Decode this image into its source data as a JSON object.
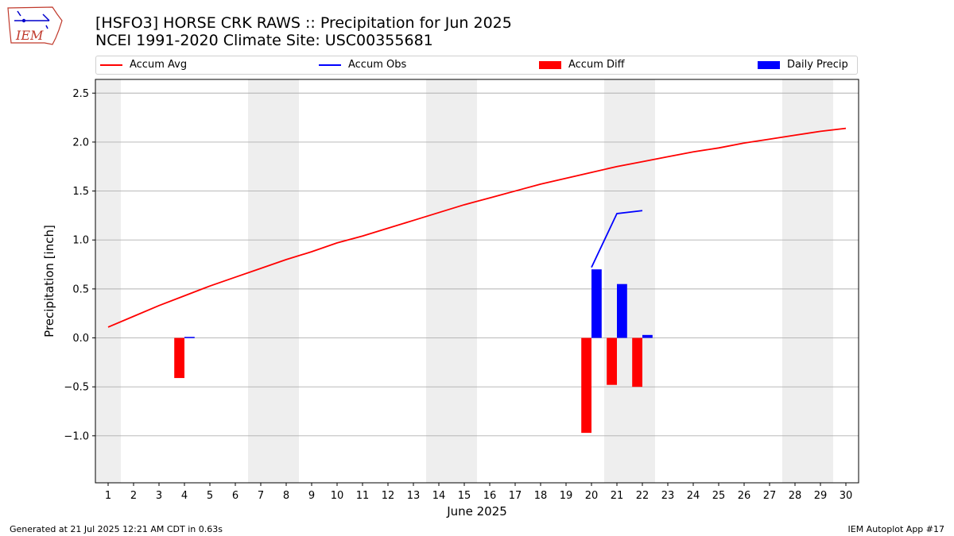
{
  "header": {
    "title_line1": "[HSFO3] HORSE CRK RAWS :: Precipitation for Jun 2025",
    "title_line2": "NCEI 1991-2020 Climate Site: USC00355681",
    "logo_text": "IEM"
  },
  "footer": {
    "left": "Generated at 21 Jul 2025 12:21 AM CDT in 0.63s",
    "right": "IEM Autoplot App #17"
  },
  "colors": {
    "accum_avg": "#ff0000",
    "accum_obs": "#0000ff",
    "accum_diff": "#ff0000",
    "daily_precip": "#0000ff",
    "weekend_shade": "#eeeeee",
    "grid": "#b0b0b0"
  },
  "chart_data": {
    "type": "bar",
    "xlabel": "June 2025",
    "ylabel": "Precipitation [inch]",
    "xlim": [
      0.5,
      30.5
    ],
    "ylim": [
      -1.48,
      2.64
    ],
    "x_ticks": [
      1,
      2,
      3,
      4,
      5,
      6,
      7,
      8,
      9,
      10,
      11,
      12,
      13,
      14,
      15,
      16,
      17,
      18,
      19,
      20,
      21,
      22,
      23,
      24,
      25,
      26,
      27,
      28,
      29,
      30
    ],
    "y_ticks": [
      -1.0,
      -0.5,
      0.0,
      0.5,
      1.0,
      1.5,
      2.0,
      2.5
    ],
    "y_tick_labels": [
      "−1.0",
      "−0.5",
      "0.0",
      "0.5",
      "1.0",
      "1.5",
      "2.0",
      "2.5"
    ],
    "grid": "horizontal",
    "legend_position": "top",
    "weekend_days": [
      1,
      7,
      8,
      14,
      15,
      21,
      22,
      28,
      29
    ],
    "legend": [
      "Accum Avg",
      "Accum Obs",
      "Accum Diff",
      "Daily Precip"
    ],
    "series": [
      {
        "name": "Accum Avg",
        "kind": "line",
        "x": [
          1,
          2,
          3,
          4,
          5,
          6,
          7,
          8,
          9,
          10,
          11,
          12,
          13,
          14,
          15,
          16,
          17,
          18,
          19,
          20,
          21,
          22,
          23,
          24,
          25,
          26,
          27,
          28,
          29,
          30
        ],
        "values": [
          0.11,
          0.22,
          0.33,
          0.43,
          0.53,
          0.62,
          0.71,
          0.8,
          0.88,
          0.97,
          1.04,
          1.12,
          1.2,
          1.28,
          1.36,
          1.43,
          1.5,
          1.57,
          1.63,
          1.69,
          1.75,
          1.8,
          1.85,
          1.9,
          1.94,
          1.99,
          2.03,
          2.07,
          2.11,
          2.14
        ]
      },
      {
        "name": "Accum Obs",
        "kind": "line",
        "x": [
          20,
          21,
          22
        ],
        "values": [
          0.72,
          1.27,
          1.3
        ]
      },
      {
        "name": "Accum Diff",
        "kind": "bar",
        "x": [
          4,
          20,
          21,
          22
        ],
        "values": [
          -0.41,
          -0.97,
          -0.48,
          -0.5
        ]
      },
      {
        "name": "Daily Precip",
        "kind": "bar",
        "x": [
          4,
          20,
          21,
          22
        ],
        "values": [
          0.01,
          0.7,
          0.55,
          0.03
        ]
      }
    ]
  }
}
